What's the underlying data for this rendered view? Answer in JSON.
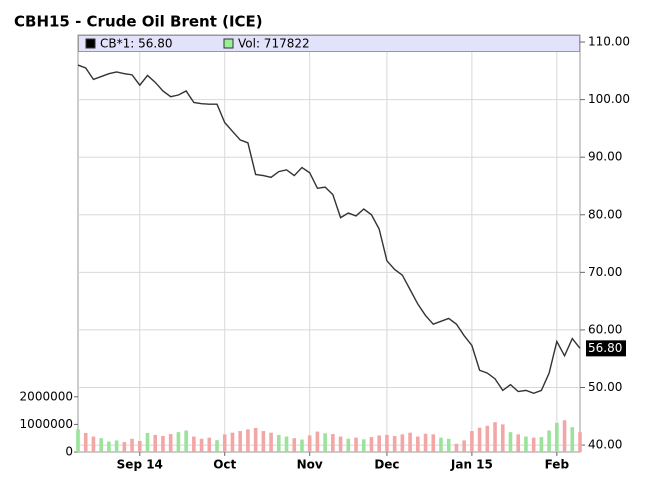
{
  "chart_data": {
    "type": "line",
    "title": "CBH15 - Crude Oil Brent (ICE)",
    "categories": [
      null,
      null,
      null,
      null,
      null,
      null,
      null,
      null,
      "Sep 14",
      null,
      null,
      null,
      null,
      null,
      null,
      null,
      null,
      null,
      null,
      "Oct",
      null,
      null,
      null,
      null,
      null,
      null,
      null,
      null,
      null,
      null,
      "Nov",
      null,
      null,
      null,
      null,
      null,
      null,
      null,
      null,
      null,
      "Dec",
      null,
      null,
      null,
      null,
      null,
      null,
      null,
      null,
      null,
      null,
      "Jan 15",
      null,
      null,
      null,
      null,
      null,
      null,
      null,
      null,
      null,
      null,
      "Feb",
      null,
      null,
      null
    ],
    "series": [
      {
        "name": "CB*1: 56.80",
        "color": "#333333",
        "axis": "y2",
        "values": [
          106,
          105.5,
          103.5,
          104,
          104.5,
          104.8,
          104.5,
          104.3,
          102.5,
          104.2,
          103,
          101.5,
          100.5,
          100.8,
          101.5,
          99.5,
          99.3,
          99.2,
          99.2,
          96,
          94.5,
          93,
          92.5,
          87,
          86.8,
          86.5,
          87.5,
          87.8,
          86.8,
          88.2,
          87.3,
          84.6,
          84.8,
          83.5,
          79.5,
          80.3,
          79.8,
          81,
          80,
          77.5,
          72,
          70.5,
          69.5,
          67,
          64.5,
          62.5,
          61,
          61.5,
          62,
          61,
          59,
          57.3,
          53,
          52.5,
          51.5,
          49.5,
          50.5,
          49.3,
          49.5,
          49,
          49.5,
          52.5,
          58,
          55.5,
          58.5,
          56.8
        ],
        "value_labels": [
          null,
          null,
          null,
          null,
          null,
          null,
          null,
          null,
          null,
          null,
          null,
          null,
          null,
          null,
          null,
          null,
          null,
          null,
          null,
          null,
          null,
          null,
          null,
          null,
          null,
          null,
          null,
          null,
          null,
          null,
          null,
          null,
          null,
          null,
          null,
          null,
          null,
          null,
          null,
          null,
          null,
          null,
          null,
          null,
          null,
          null,
          null,
          null,
          null,
          null,
          null,
          null,
          null,
          null,
          null,
          null,
          null,
          null,
          null,
          null,
          null,
          null,
          null,
          null,
          null,
          "56.80"
        ]
      },
      {
        "name": "Vol: 717822",
        "color": "#99ee99",
        "type": "bar",
        "values": [
          820000,
          690000,
          560000,
          500000,
          380000,
          420000,
          360000,
          480000,
          400000,
          690000,
          620000,
          580000,
          650000,
          720000,
          780000,
          560000,
          480000,
          520000,
          430000,
          640000,
          700000,
          760000,
          820000,
          870000,
          760000,
          700000,
          620000,
          560000,
          500000,
          450000,
          600000,
          740000,
          680000,
          650000,
          560000,
          480000,
          520000,
          460000,
          540000,
          600000,
          620000,
          580000,
          640000,
          700000,
          560000,
          660000,
          640000,
          520000,
          480000,
          300000,
          420000,
          760000,
          880000,
          950000,
          1080000,
          1000000,
          720000,
          640000,
          560000,
          520000,
          540000,
          780000,
          1060000,
          1150000,
          900000,
          717822
        ]
      }
    ],
    "up_color": "#9be39b",
    "down_color": "#f3a6a6",
    "ylim": [
      0,
      15000000
    ],
    "yticks": [
      0,
      1000000,
      2000000
    ],
    "y2lim": [
      38.8,
      110.7
    ],
    "y2ticks": [
      {
        "value": 110,
        "label": "110.00"
      },
      {
        "value": 100,
        "label": "100.00"
      },
      {
        "value": 90,
        "label": "90.00"
      },
      {
        "value": 80,
        "label": "80.00"
      },
      {
        "value": 70,
        "label": "70.00"
      },
      {
        "value": 60,
        "label": "60.00"
      },
      {
        "value": 50,
        "label": "50.00"
      },
      {
        "value": 40,
        "label": "40.00"
      }
    ],
    "grid": true
  }
}
